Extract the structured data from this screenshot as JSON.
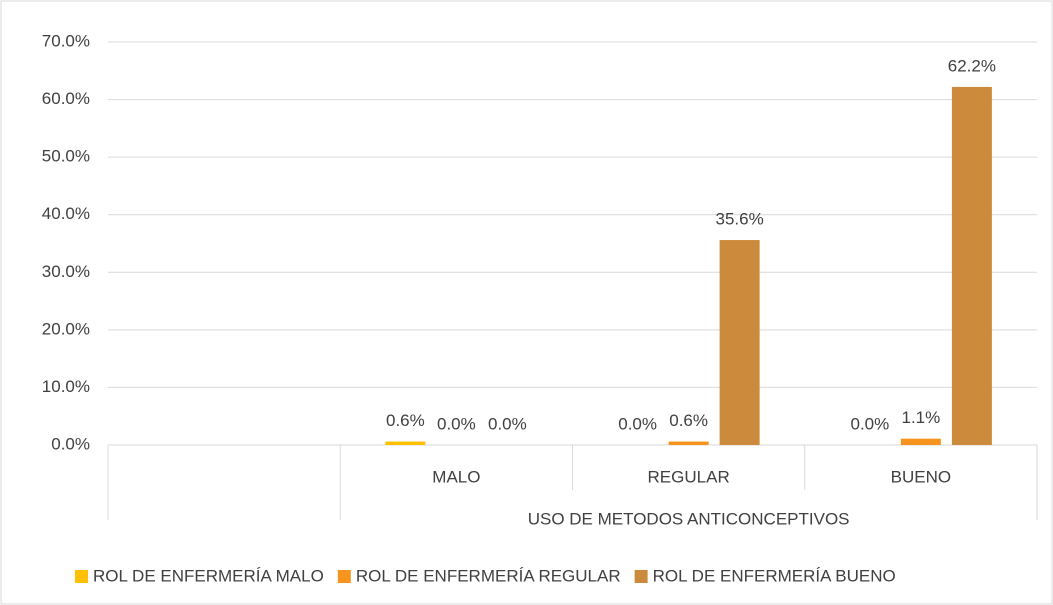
{
  "chart_data": {
    "type": "bar",
    "categories": [
      null,
      "MALO",
      "REGULAR",
      "BUENO"
    ],
    "x_group_label": "USO DE METODOS ANTICONCEPTIVOS",
    "series": [
      {
        "name": "ROL DE ENFERMERÍA MALO",
        "color": "#ffc000",
        "values": [
          null,
          0.6,
          0.0,
          0.0
        ],
        "value_labels": [
          null,
          "0.6%",
          "0.0%",
          "0.0%"
        ]
      },
      {
        "name": "ROL DE ENFERMERÍA REGULAR",
        "color": "#f7941d",
        "values": [
          null,
          0.0,
          0.6,
          1.1
        ],
        "value_labels": [
          null,
          "0.0%",
          "0.6%",
          "1.1%"
        ]
      },
      {
        "name": "ROL DE ENFERMERÍA BUENO",
        "color": "#cc8b3c",
        "values": [
          null,
          0.0,
          35.6,
          62.2
        ],
        "value_labels": [
          null,
          "0.0%",
          "35.6%",
          "62.2%"
        ]
      }
    ],
    "ylim": [
      0,
      70
    ],
    "yticks": [
      {
        "value": 0,
        "label": "0.0%"
      },
      {
        "value": 10,
        "label": "10.0%"
      },
      {
        "value": 20,
        "label": "20.0%"
      },
      {
        "value": 30,
        "label": "30.0%"
      },
      {
        "value": 40,
        "label": "40.0%"
      },
      {
        "value": 50,
        "label": "50.0%"
      },
      {
        "value": 60,
        "label": "60.0%"
      },
      {
        "value": 70,
        "label": "70.0%"
      }
    ],
    "grid": true,
    "legend": "bottom"
  }
}
